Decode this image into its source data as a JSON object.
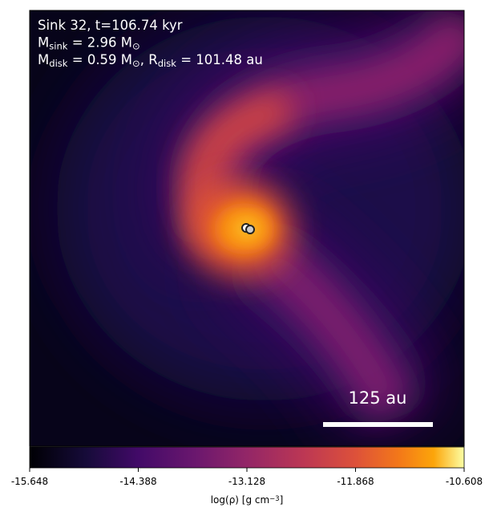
{
  "chart_data": {
    "type": "density-map",
    "annotation_lines": [
      [
        {
          "text": "Sink 32, t=106.74 kyr"
        }
      ],
      [
        {
          "text": "M"
        },
        {
          "sub": "sink"
        },
        {
          "text": " = 2.96 M"
        },
        {
          "sub": "⊙"
        }
      ],
      [
        {
          "text": "M"
        },
        {
          "sub": "disk"
        },
        {
          "text": " = 0.59 M"
        },
        {
          "sub": "⊙"
        },
        {
          "text": ", R"
        },
        {
          "sub": "disk"
        },
        {
          "text": " = 101.48 au"
        }
      ]
    ],
    "scale_bar_label": "125 au",
    "colorbar": {
      "colormap": "inferno",
      "clim": [
        -15.648,
        -10.608
      ],
      "ticks": [
        -15.648,
        -14.388,
        -13.128,
        -11.868,
        -10.608
      ],
      "label": [
        {
          "text": "log(ρ) [g cm"
        },
        {
          "sup": "−3"
        },
        {
          "text": "]"
        }
      ]
    }
  }
}
